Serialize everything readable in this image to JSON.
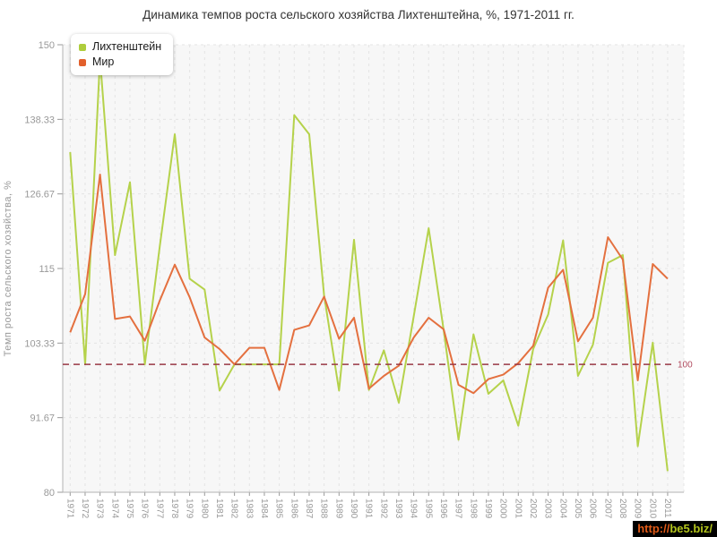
{
  "title": "Динамика темпов роста сельского хозяйства Лихтенштейна, %, 1971-2011 гг.",
  "legend": [
    {
      "label": "Лихтенштейн",
      "color": "#aecd3c"
    },
    {
      "label": "Мир",
      "color": "#e2602c"
    }
  ],
  "y_axis": {
    "title": "Темп роста сельского хозяйства, %",
    "tick_labels": [
      "150",
      "138.33",
      "126.67",
      "115",
      "103.33",
      "91.67",
      "80"
    ],
    "tick_values": [
      150,
      138.33,
      126.67,
      115,
      103.33,
      91.67,
      80
    ],
    "min": 80,
    "max": 150
  },
  "reference_line": {
    "value": 100,
    "label": "100",
    "color": "#993845",
    "label_color": "#b04a5e"
  },
  "watermark": {
    "prefix": "http://",
    "domain": "be5.biz/"
  },
  "chart_data": {
    "type": "line",
    "title": "Динамика темпов роста сельского хозяйства Лихтенштейна, %, 1971-2011 гг.",
    "xlabel": "",
    "ylabel": "Темп роста сельского хозяйства, %",
    "ylim": [
      80,
      150
    ],
    "yticks": [
      150,
      138.33,
      126.67,
      115,
      103.33,
      91.67,
      80
    ],
    "grid": true,
    "legend_position": "top-left",
    "reference_line": 100,
    "x": [
      1971,
      1972,
      1973,
      1974,
      1975,
      1976,
      1977,
      1978,
      1979,
      1980,
      1981,
      1982,
      1983,
      1984,
      1985,
      1986,
      1987,
      1988,
      1989,
      1990,
      1991,
      1992,
      1993,
      1994,
      1995,
      1996,
      1997,
      1998,
      1999,
      2000,
      2001,
      2002,
      2003,
      2004,
      2005,
      2006,
      2007,
      2008,
      2009,
      2010,
      2011
    ],
    "series": [
      {
        "name": "Лихтенштейн",
        "key": "liechtenstein",
        "color": "#b5d24b",
        "values": [
          133.2,
          100,
          147.9,
          117.1,
          128.5,
          100,
          118.5,
          136,
          113.4,
          111.7,
          95.9,
          100,
          100,
          100,
          100,
          139,
          136,
          110.8,
          95.9,
          119.5,
          96,
          102.2,
          94,
          107.5,
          121.3,
          105.4,
          88.2,
          104.7,
          95.4,
          97.5,
          90.4,
          102.4,
          107.8,
          119.4,
          98.2,
          103.1,
          115.9,
          117.1,
          87.2,
          103.4,
          83.3
        ]
      },
      {
        "name": "Мир",
        "key": "mir",
        "color": "#e4703f",
        "values": [
          105,
          111,
          129.7,
          107.1,
          107.5,
          103.7,
          110,
          115.6,
          110.5,
          104.2,
          102.4,
          100,
          102.6,
          102.6,
          96,
          105.4,
          106.1,
          110.6,
          104,
          107.3,
          96.2,
          98.2,
          99.8,
          104.2,
          107.3,
          105.5,
          96.8,
          95.5,
          97.7,
          98.4,
          100.2,
          102.9,
          112,
          114.8,
          103.6,
          107.3,
          119.9,
          116.4,
          97.5,
          115.7,
          113.4
        ]
      }
    ]
  }
}
